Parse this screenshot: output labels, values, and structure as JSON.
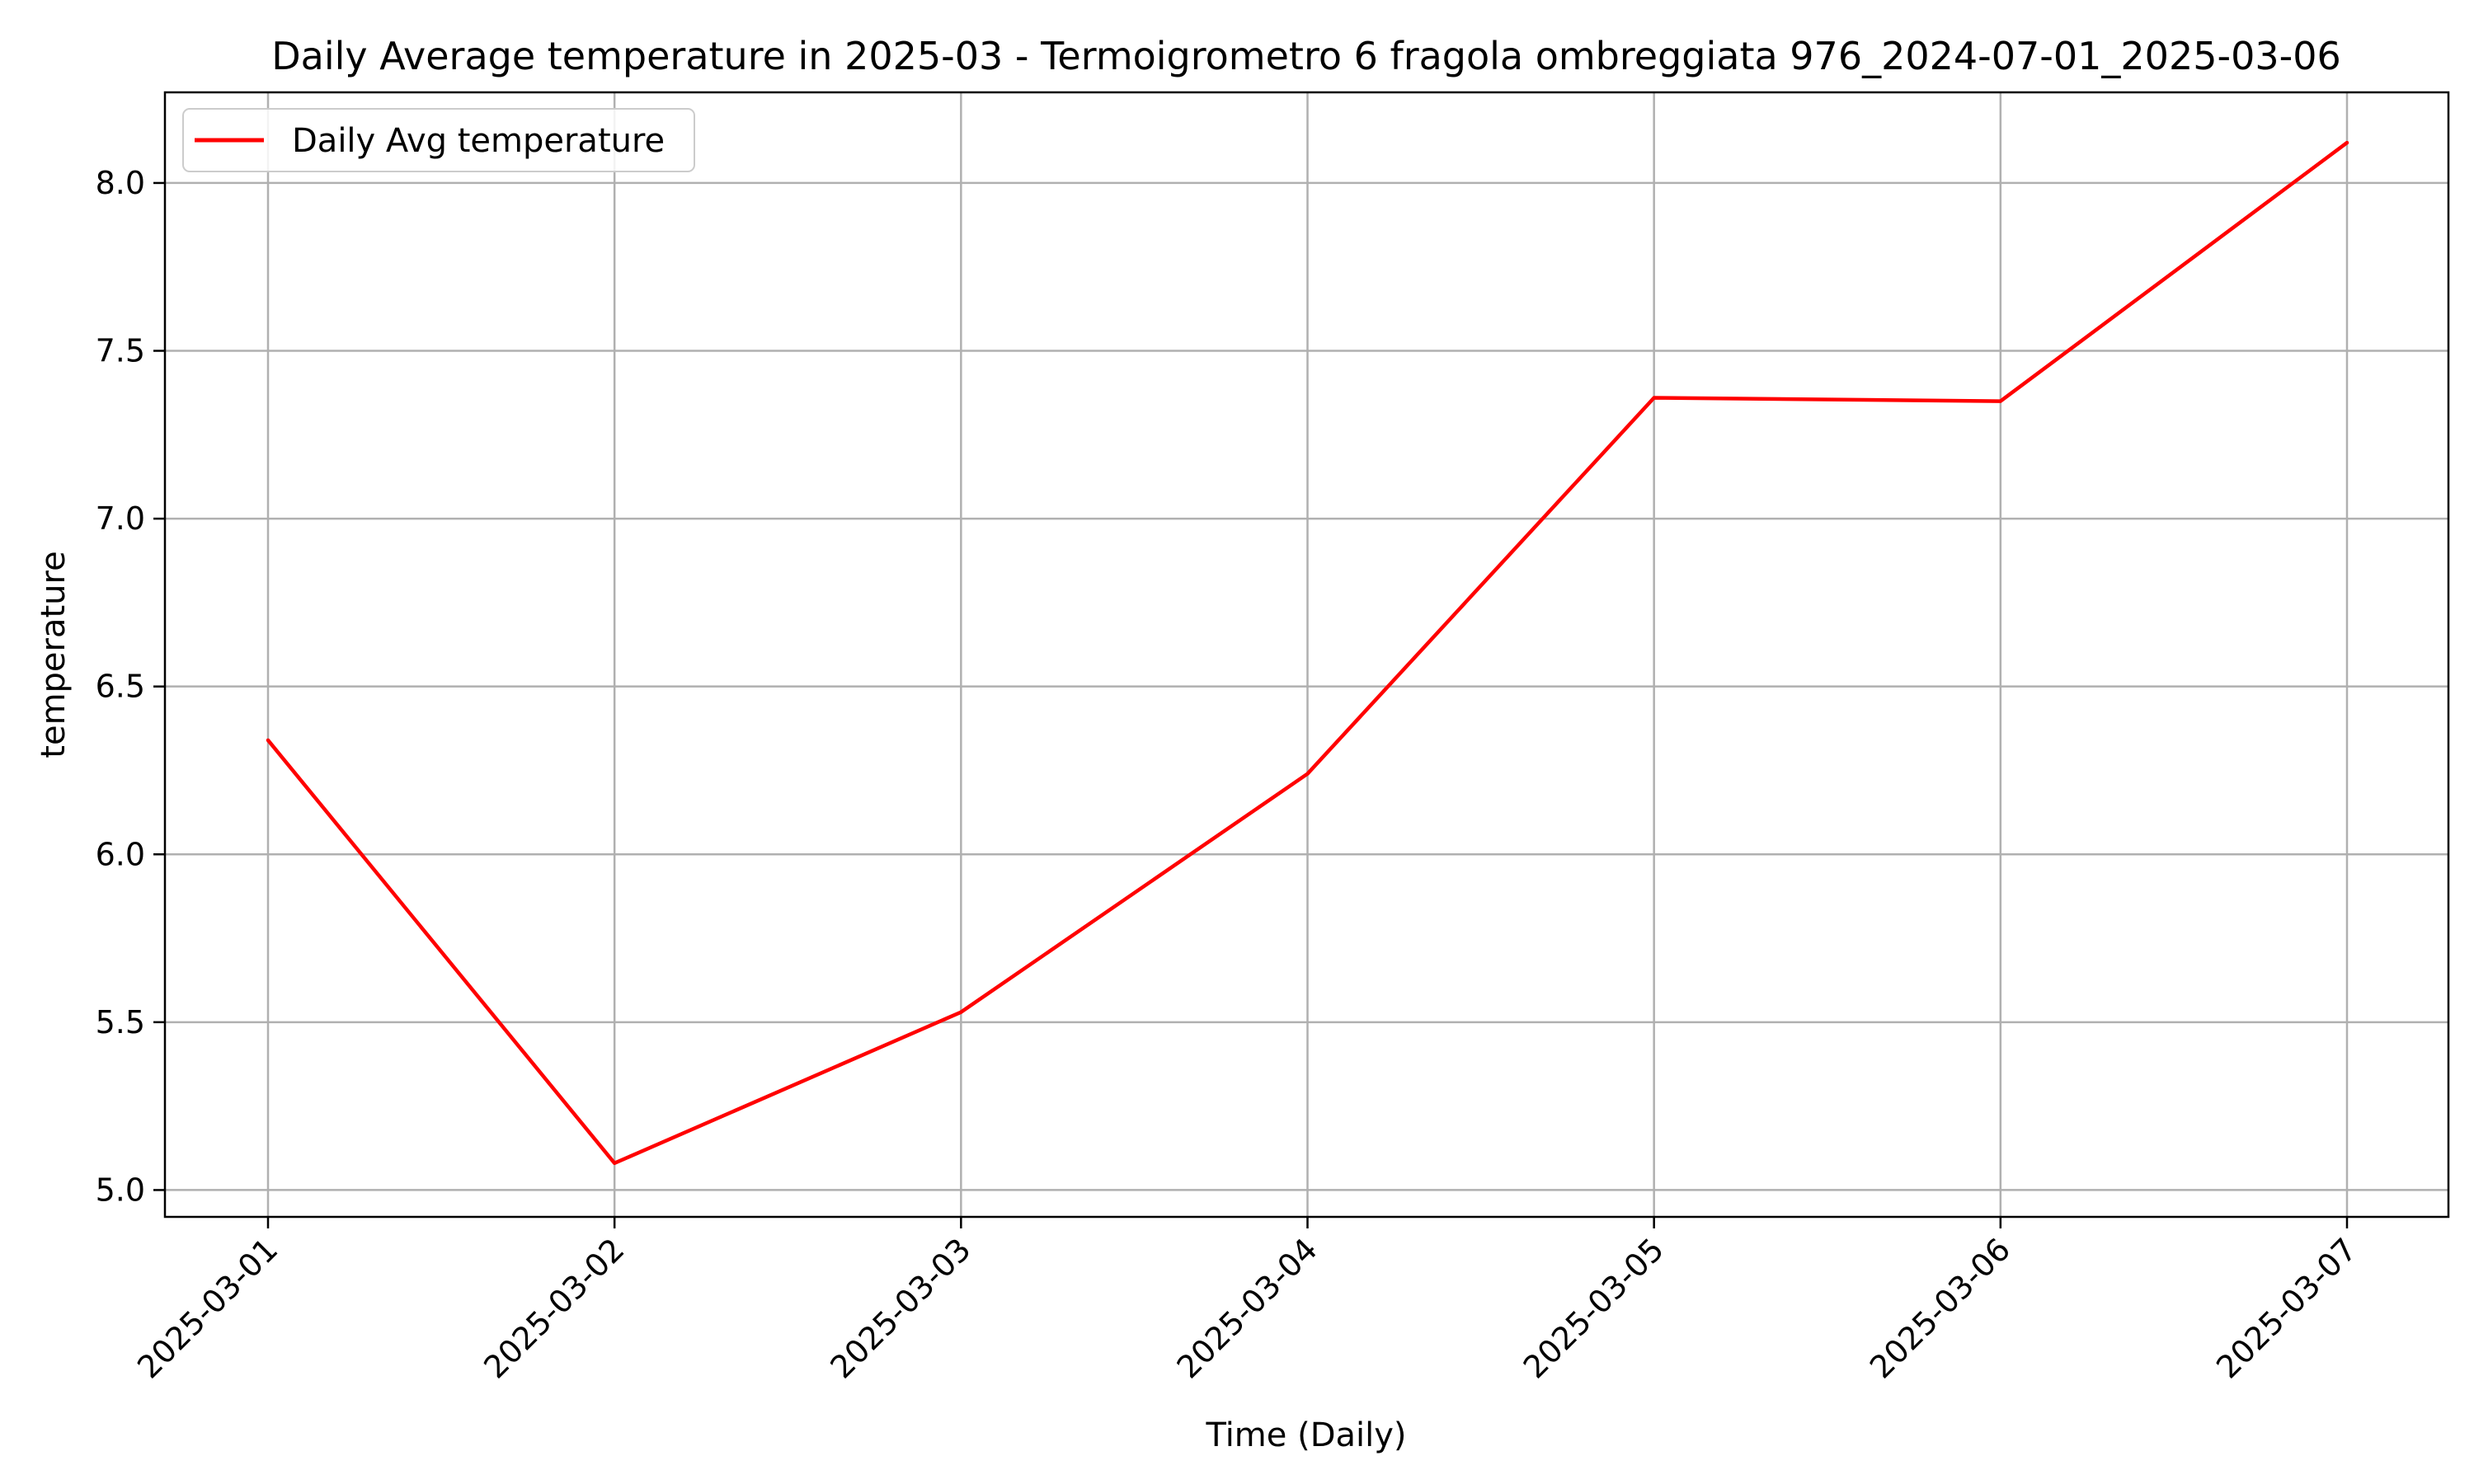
{
  "chart_data": {
    "type": "line",
    "title": "Daily Average temperature in 2025-03 - Termoigrometro 6 fragola ombreggiata 976_2024-07-01_2025-03-06",
    "xlabel": "Time (Daily)",
    "ylabel": "temperature",
    "categories": [
      "2025-03-01",
      "2025-03-02",
      "2025-03-03",
      "2025-03-04",
      "2025-03-05",
      "2025-03-06",
      "2025-03-07"
    ],
    "series": [
      {
        "name": "Daily Avg temperature",
        "color": "#ff0000",
        "values": [
          6.34,
          5.08,
          5.53,
          6.24,
          7.36,
          7.35,
          8.12
        ]
      }
    ],
    "ylim": [
      4.92,
      8.27
    ],
    "yticks": [
      5.0,
      5.5,
      6.0,
      6.5,
      7.0,
      7.5,
      8.0
    ],
    "grid": true,
    "legend_position": "top-left"
  }
}
